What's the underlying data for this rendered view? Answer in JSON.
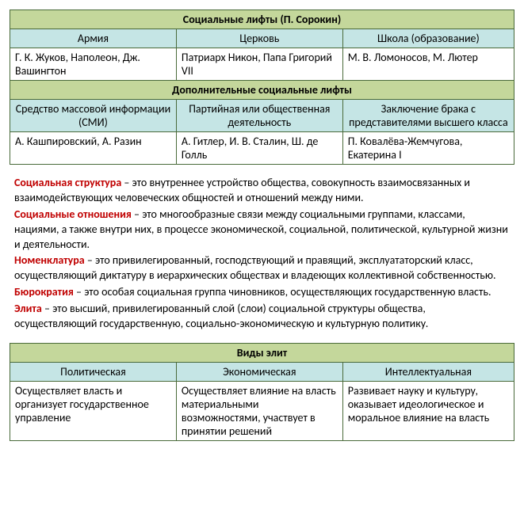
{
  "table1": {
    "title": "Социальные лифты (П. Сорокин)",
    "headers": [
      "Армия",
      "Церковь",
      "Школа (образование)"
    ],
    "row1": [
      "Г. К. Жуков, Наполеон, Дж. Вашингтон",
      "Патриарх Никон, Папа Григорий VII",
      "М. В. Ломоносов, М. Лютер"
    ],
    "subtitle": "Дополнительные социальные лифты",
    "headers2": [
      "Средство массовой информации (СМИ)",
      "Партийная или общественная деятельность",
      "Заключение брака с представителями высшего класса"
    ],
    "row2": [
      "А. Кашпировский, А. Разин",
      "А. Гитлер, И. В. Сталин, Ш. де Голль",
      "П. Ковалёва-Жемчугова, Екатерина I"
    ]
  },
  "definitions": [
    {
      "term": "Социальная структура",
      "text": " – это внутреннее устройство общества, совокупность взаимосвязанных и взаимодействующих человеческих общностей и отношений между ними."
    },
    {
      "term": "Социальные отношения",
      "text": " – это многообразные связи между социальными группами, классами, нациями, а также внутри них, в процессе экономической, социальной, политической, культурной жизни и деятельности."
    },
    {
      "term": "Номенклатура",
      "text": " – это привилегированный, господствующий и правящий, эксплуататорский класс, осуществляющий диктатуру в иерархических обществах и владеющих коллективной собственностью."
    },
    {
      "term": "Бюрократия",
      "text": " – это особая социальная группа чиновников, осуществляющих государственную власть."
    },
    {
      "term": "Элита",
      "text": " – это высший, привилегированный слой (слои) социальной структуры общества, осуществляющий государственную, социально-экономическую и культурную политику."
    }
  ],
  "table2": {
    "title": "Виды элит",
    "headers": [
      "Политическая",
      "Экономическая",
      "Интеллектуальная"
    ],
    "row": [
      "Осуществляет власть и организует государственное управление",
      "Осуществляет влияние на власть материальными возможностями, участвует в принятии решений",
      "Развивает науку и культуру, оказывает идеологическое и моральное влияние на власть"
    ]
  },
  "colors": {
    "green_header": "#c4d79b",
    "blue_header": "#c5e5e5",
    "border": "#4a6a3a",
    "term": "#c00000",
    "background": "#ffffff"
  }
}
